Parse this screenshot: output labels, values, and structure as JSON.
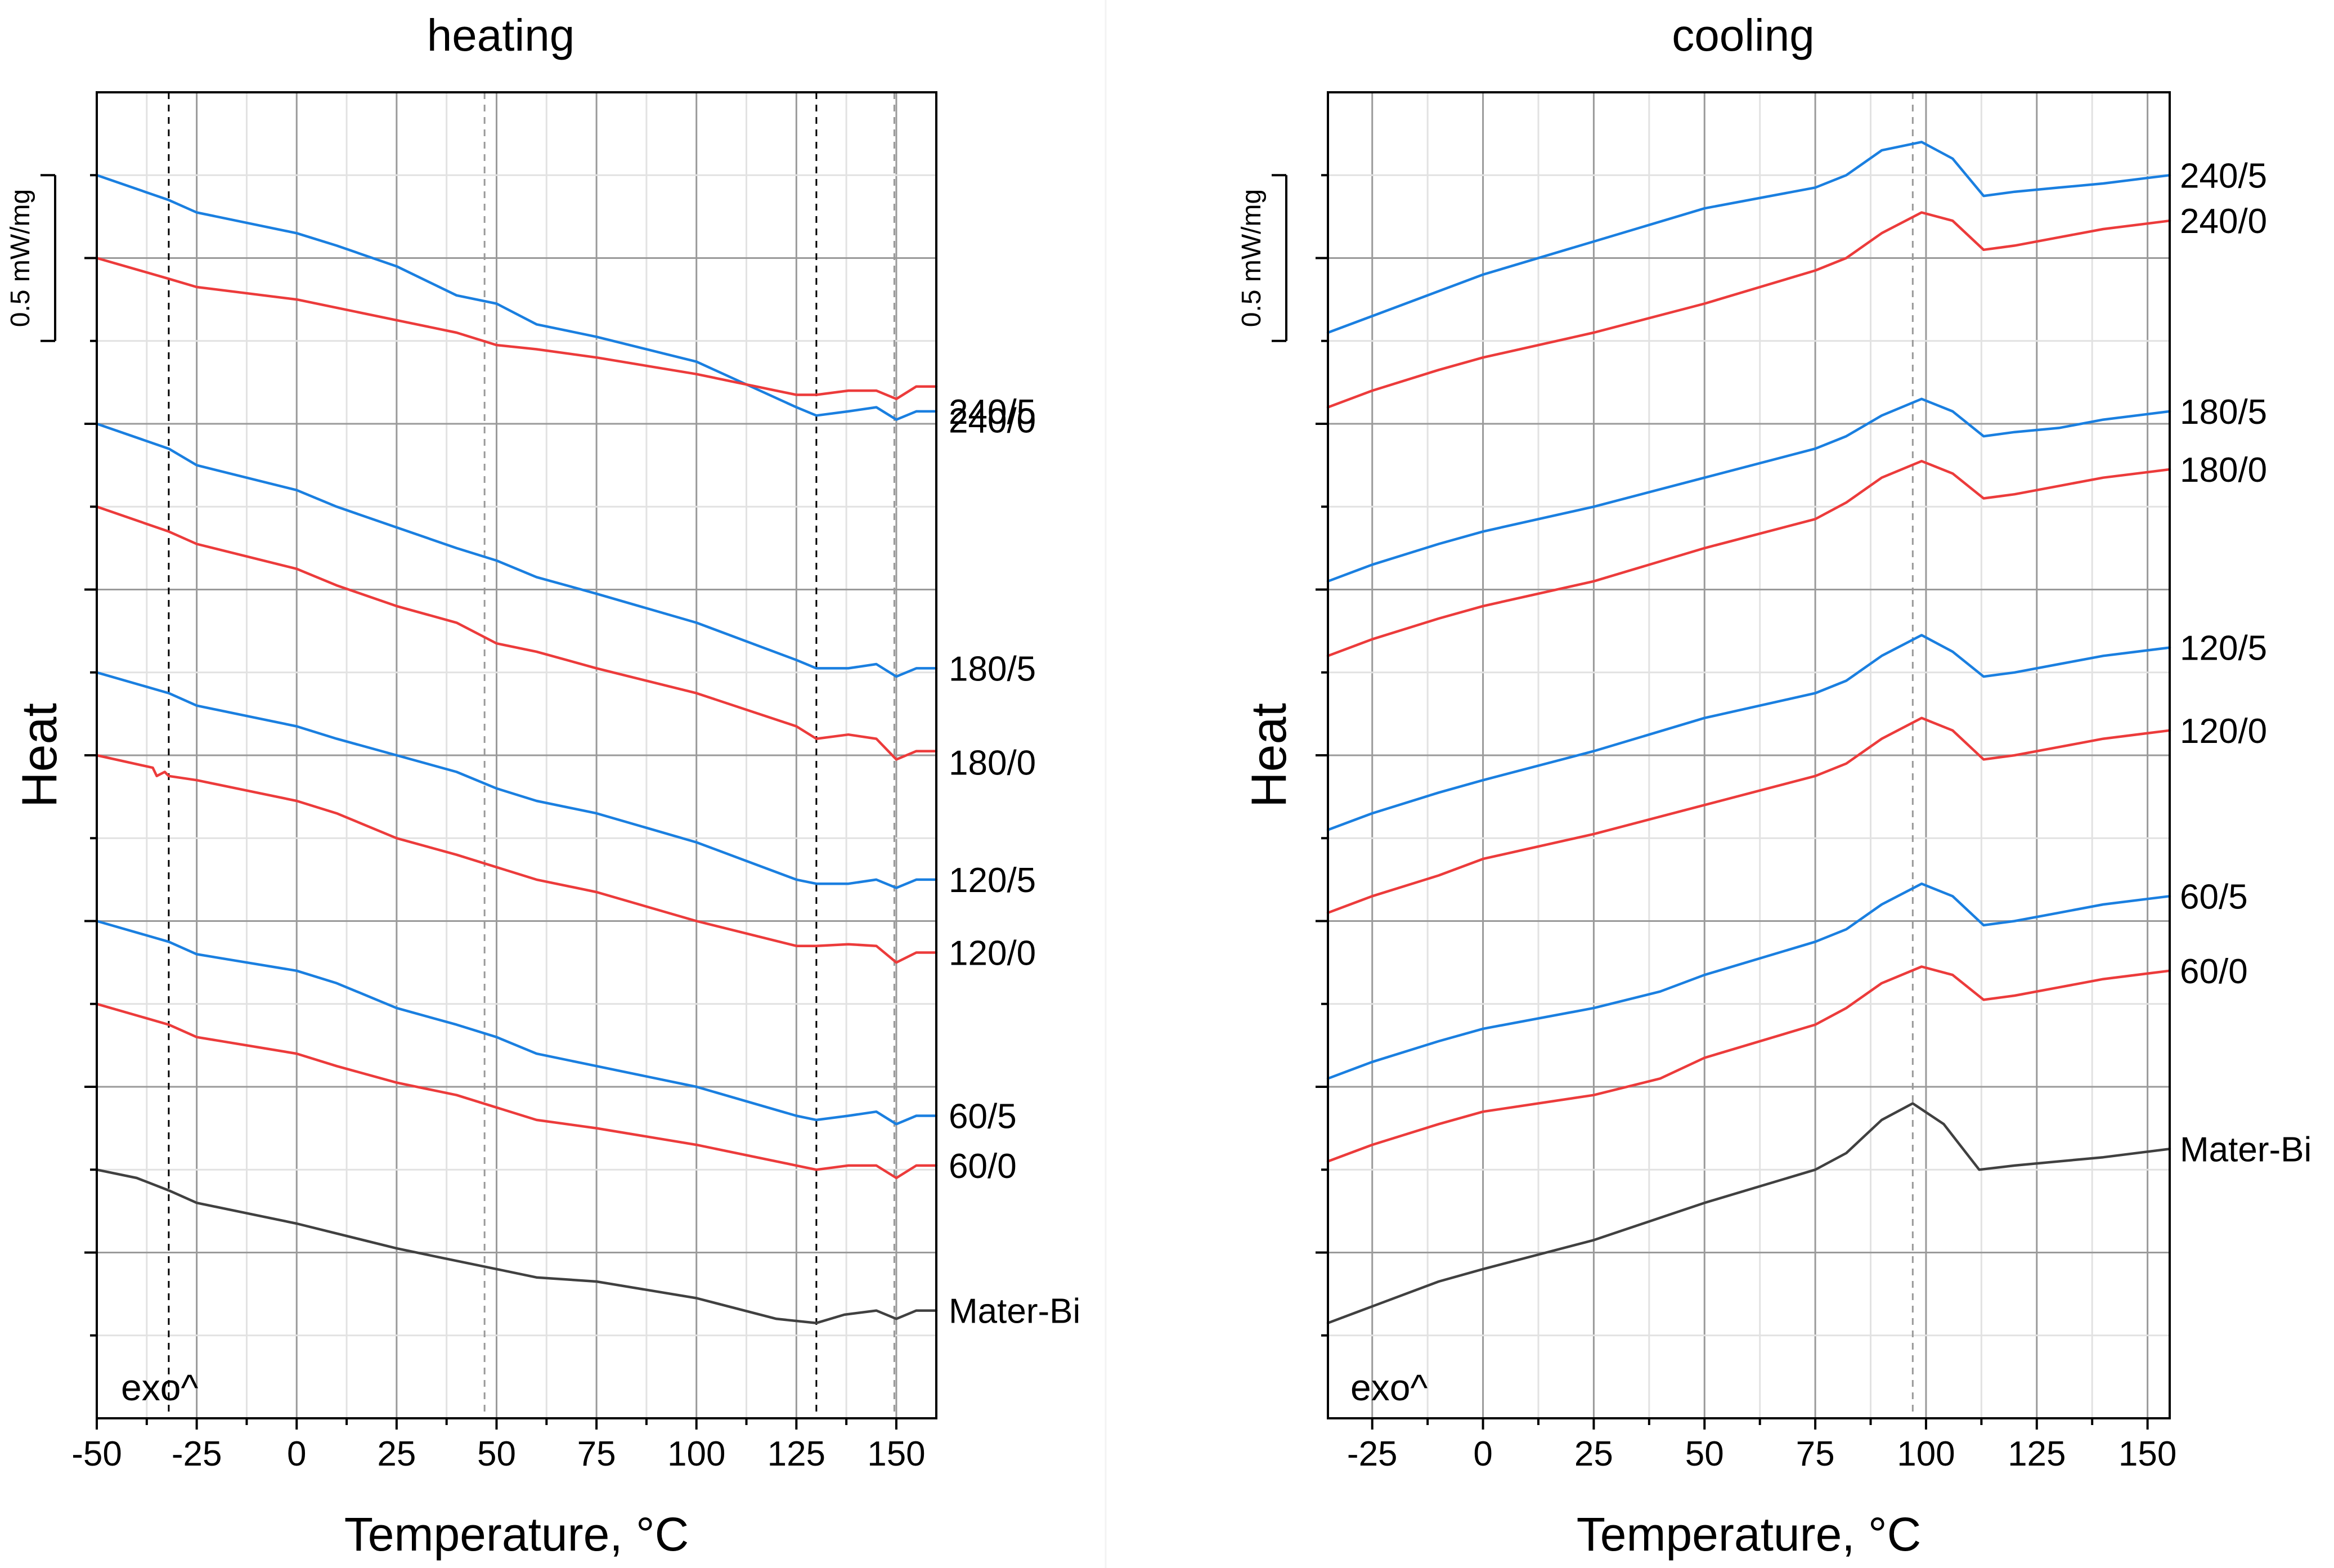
{
  "colors": {
    "blue": "#1a7fe0",
    "red": "#ec3b3b",
    "gray": "#404040"
  },
  "chart_data": [
    {
      "type": "line",
      "title": "heating",
      "xlabel": "Temperature, °C",
      "ylabel": "Heat",
      "xlim": [
        -50,
        160
      ],
      "xticks": [
        -50,
        -25,
        0,
        25,
        50,
        75,
        100,
        125,
        150
      ],
      "xtick_labels": [
        "-50",
        "-25",
        "0",
        "25",
        "50",
        "75",
        "100",
        "125",
        "150"
      ],
      "ylim": [
        0,
        16
      ],
      "scale_bar": {
        "label": "0.5 mW/mg",
        "from": 13,
        "to": 15
      },
      "annotation": "exo^",
      "reference_lines": [
        {
          "x": -32,
          "color": "#000000"
        },
        {
          "x": 47,
          "color": "#999999"
        },
        {
          "x": 130,
          "color": "#000000"
        },
        {
          "x": 149.5,
          "color": "#999999"
        }
      ],
      "series": [
        {
          "name": "240/5",
          "label": "240/5",
          "color": "blue",
          "x": [
            -50,
            -32,
            -25,
            0,
            10,
            25,
            40,
            50,
            60,
            75,
            100,
            125,
            130,
            138,
            145,
            150,
            155,
            160
          ],
          "y": [
            15.0,
            14.7,
            14.55,
            14.3,
            14.15,
            13.9,
            13.55,
            13.45,
            13.2,
            13.05,
            12.75,
            12.2,
            12.1,
            12.15,
            12.2,
            12.05,
            12.15,
            12.15
          ]
        },
        {
          "name": "240/0",
          "label": "240/0",
          "color": "red",
          "x": [
            -50,
            -32,
            -25,
            0,
            10,
            25,
            40,
            50,
            60,
            75,
            100,
            125,
            130,
            138,
            145,
            150,
            155,
            160
          ],
          "y": [
            14.0,
            13.75,
            13.65,
            13.5,
            13.4,
            13.25,
            13.1,
            12.95,
            12.9,
            12.8,
            12.6,
            12.35,
            12.35,
            12.4,
            12.4,
            12.3,
            12.45,
            12.45
          ]
        },
        {
          "name": "180/5",
          "label": "180/5",
          "color": "blue",
          "x": [
            -50,
            -32,
            -25,
            0,
            10,
            25,
            40,
            50,
            60,
            75,
            100,
            125,
            130,
            138,
            145,
            150,
            155,
            160
          ],
          "y": [
            12.0,
            11.7,
            11.5,
            11.2,
            11.0,
            10.75,
            10.5,
            10.35,
            10.15,
            9.95,
            9.6,
            9.15,
            9.05,
            9.05,
            9.1,
            8.95,
            9.05,
            9.05
          ]
        },
        {
          "name": "180/0",
          "label": "180/0",
          "color": "red",
          "x": [
            -50,
            -32,
            -25,
            0,
            10,
            25,
            40,
            50,
            60,
            75,
            100,
            125,
            130,
            138,
            145,
            150,
            155,
            160
          ],
          "y": [
            11.0,
            10.7,
            10.55,
            10.25,
            10.05,
            9.8,
            9.6,
            9.35,
            9.25,
            9.05,
            8.75,
            8.35,
            8.2,
            8.25,
            8.2,
            7.95,
            8.05,
            8.05
          ]
        },
        {
          "name": "120/5",
          "label": "120/5",
          "color": "blue",
          "x": [
            -50,
            -32,
            -25,
            0,
            10,
            25,
            40,
            50,
            60,
            75,
            100,
            125,
            130,
            138,
            145,
            150,
            155,
            160
          ],
          "y": [
            9.0,
            8.75,
            8.6,
            8.35,
            8.2,
            8.0,
            7.8,
            7.6,
            7.45,
            7.3,
            6.95,
            6.5,
            6.45,
            6.45,
            6.5,
            6.4,
            6.5,
            6.5
          ]
        },
        {
          "name": "120/0",
          "label": "120/0",
          "color": "red",
          "x": [
            -50,
            -36,
            -35,
            -33,
            -32,
            -25,
            0,
            10,
            25,
            40,
            50,
            60,
            75,
            100,
            125,
            130,
            138,
            145,
            150,
            155,
            160
          ],
          "y": [
            8.0,
            7.85,
            7.75,
            7.8,
            7.75,
            7.7,
            7.45,
            7.3,
            7.0,
            6.8,
            6.65,
            6.5,
            6.35,
            6.0,
            5.7,
            5.7,
            5.72,
            5.7,
            5.5,
            5.62,
            5.62
          ]
        },
        {
          "name": "60/5",
          "label": "60/5",
          "color": "blue",
          "x": [
            -50,
            -32,
            -25,
            0,
            10,
            25,
            40,
            50,
            60,
            75,
            100,
            125,
            130,
            138,
            145,
            150,
            155,
            160
          ],
          "y": [
            6.0,
            5.75,
            5.6,
            5.4,
            5.25,
            4.95,
            4.75,
            4.6,
            4.4,
            4.25,
            4.0,
            3.65,
            3.6,
            3.65,
            3.7,
            3.55,
            3.65,
            3.65
          ]
        },
        {
          "name": "60/0",
          "label": "60/0",
          "color": "red",
          "x": [
            -50,
            -32,
            -25,
            0,
            10,
            25,
            40,
            50,
            60,
            75,
            100,
            125,
            130,
            138,
            145,
            150,
            155,
            160
          ],
          "y": [
            5.0,
            4.75,
            4.6,
            4.4,
            4.25,
            4.05,
            3.9,
            3.75,
            3.6,
            3.5,
            3.3,
            3.05,
            3.0,
            3.05,
            3.05,
            2.9,
            3.05,
            3.05
          ]
        },
        {
          "name": "Mater-Bi",
          "label": "Mater-Bi",
          "color": "gray",
          "x": [
            -50,
            -40,
            -32,
            -25,
            0,
            25,
            35,
            50,
            60,
            75,
            100,
            120,
            130,
            137,
            145,
            150,
            155,
            160
          ],
          "y": [
            3.0,
            2.9,
            2.75,
            2.6,
            2.35,
            2.05,
            1.95,
            1.8,
            1.7,
            1.65,
            1.45,
            1.2,
            1.15,
            1.25,
            1.3,
            1.2,
            1.3,
            1.3
          ]
        }
      ]
    },
    {
      "type": "line",
      "title": "cooling",
      "xlabel": "Temperature, °C",
      "ylabel": "Heat",
      "xlim": [
        -35,
        155
      ],
      "xticks": [
        -25,
        0,
        25,
        50,
        75,
        100,
        125,
        150
      ],
      "xtick_labels": [
        "-25",
        "0",
        "25",
        "50",
        "75",
        "100",
        "125",
        "150"
      ],
      "ylim": [
        0,
        16
      ],
      "scale_bar": {
        "label": "0.5 mW/mg",
        "from": 13,
        "to": 15
      },
      "annotation": "exo^",
      "reference_lines": [
        {
          "x": 97,
          "color": "#999999"
        }
      ],
      "series": [
        {
          "name": "240/5",
          "label": "240/5",
          "color": "blue",
          "x": [
            -35,
            -25,
            -10,
            0,
            25,
            50,
            75,
            82,
            90,
            99,
            106,
            113,
            120,
            130,
            140,
            155
          ],
          "y": [
            13.1,
            13.3,
            13.6,
            13.8,
            14.2,
            14.6,
            14.85,
            15.0,
            15.3,
            15.4,
            15.2,
            14.75,
            14.8,
            14.85,
            14.9,
            15.0
          ]
        },
        {
          "name": "240/0",
          "label": "240/0",
          "color": "red",
          "x": [
            -35,
            -25,
            -10,
            0,
            25,
            50,
            75,
            82,
            90,
            99,
            106,
            113,
            120,
            130,
            140,
            155
          ],
          "y": [
            12.2,
            12.4,
            12.65,
            12.8,
            13.1,
            13.45,
            13.85,
            14.0,
            14.3,
            14.55,
            14.45,
            14.1,
            14.15,
            14.25,
            14.35,
            14.45
          ]
        },
        {
          "name": "180/5",
          "label": "180/5",
          "color": "blue",
          "x": [
            -35,
            -25,
            -10,
            0,
            25,
            50,
            75,
            82,
            90,
            99,
            106,
            113,
            120,
            130,
            140,
            155
          ],
          "y": [
            10.1,
            10.3,
            10.55,
            10.7,
            11.0,
            11.35,
            11.7,
            11.85,
            12.1,
            12.3,
            12.15,
            11.85,
            11.9,
            11.95,
            12.05,
            12.15
          ]
        },
        {
          "name": "180/0",
          "label": "180/0",
          "color": "red",
          "x": [
            -35,
            -25,
            -10,
            0,
            25,
            50,
            75,
            82,
            90,
            99,
            106,
            113,
            120,
            130,
            140,
            155
          ],
          "y": [
            9.2,
            9.4,
            9.65,
            9.8,
            10.1,
            10.5,
            10.85,
            11.05,
            11.35,
            11.55,
            11.4,
            11.1,
            11.15,
            11.25,
            11.35,
            11.45
          ]
        },
        {
          "name": "120/5",
          "label": "120/5",
          "color": "blue",
          "x": [
            -35,
            -25,
            -10,
            0,
            25,
            50,
            75,
            82,
            90,
            99,
            106,
            113,
            120,
            130,
            140,
            155
          ],
          "y": [
            7.1,
            7.3,
            7.55,
            7.7,
            8.05,
            8.45,
            8.75,
            8.9,
            9.2,
            9.45,
            9.25,
            8.95,
            9.0,
            9.1,
            9.2,
            9.3
          ]
        },
        {
          "name": "120/0",
          "label": "120/0",
          "color": "red",
          "x": [
            -35,
            -25,
            -10,
            0,
            25,
            50,
            75,
            82,
            90,
            99,
            106,
            113,
            120,
            130,
            140,
            155
          ],
          "y": [
            6.1,
            6.3,
            6.55,
            6.75,
            7.05,
            7.4,
            7.75,
            7.9,
            8.2,
            8.45,
            8.3,
            7.95,
            8.0,
            8.1,
            8.2,
            8.3
          ]
        },
        {
          "name": "60/5",
          "label": "60/5",
          "color": "blue",
          "x": [
            -35,
            -25,
            -10,
            0,
            25,
            40,
            50,
            75,
            82,
            90,
            99,
            106,
            113,
            120,
            130,
            140,
            155
          ],
          "y": [
            4.1,
            4.3,
            4.55,
            4.7,
            4.95,
            5.15,
            5.35,
            5.75,
            5.9,
            6.2,
            6.45,
            6.3,
            5.95,
            6.0,
            6.1,
            6.2,
            6.3
          ]
        },
        {
          "name": "60/0",
          "label": "60/0",
          "color": "red",
          "x": [
            -35,
            -25,
            -10,
            0,
            25,
            40,
            50,
            75,
            82,
            90,
            99,
            106,
            113,
            120,
            130,
            140,
            155
          ],
          "y": [
            3.1,
            3.3,
            3.55,
            3.7,
            3.9,
            4.1,
            4.35,
            4.75,
            4.95,
            5.25,
            5.45,
            5.35,
            5.05,
            5.1,
            5.2,
            5.3,
            5.4
          ]
        },
        {
          "name": "Mater-Bi",
          "label": "Mater-Bi",
          "color": "gray",
          "x": [
            -35,
            -25,
            -10,
            0,
            25,
            50,
            75,
            82,
            90,
            97,
            104,
            112,
            120,
            130,
            140,
            155
          ],
          "y": [
            1.15,
            1.35,
            1.65,
            1.8,
            2.15,
            2.6,
            3.0,
            3.2,
            3.6,
            3.8,
            3.55,
            3.0,
            3.05,
            3.1,
            3.15,
            3.25
          ]
        }
      ]
    }
  ]
}
